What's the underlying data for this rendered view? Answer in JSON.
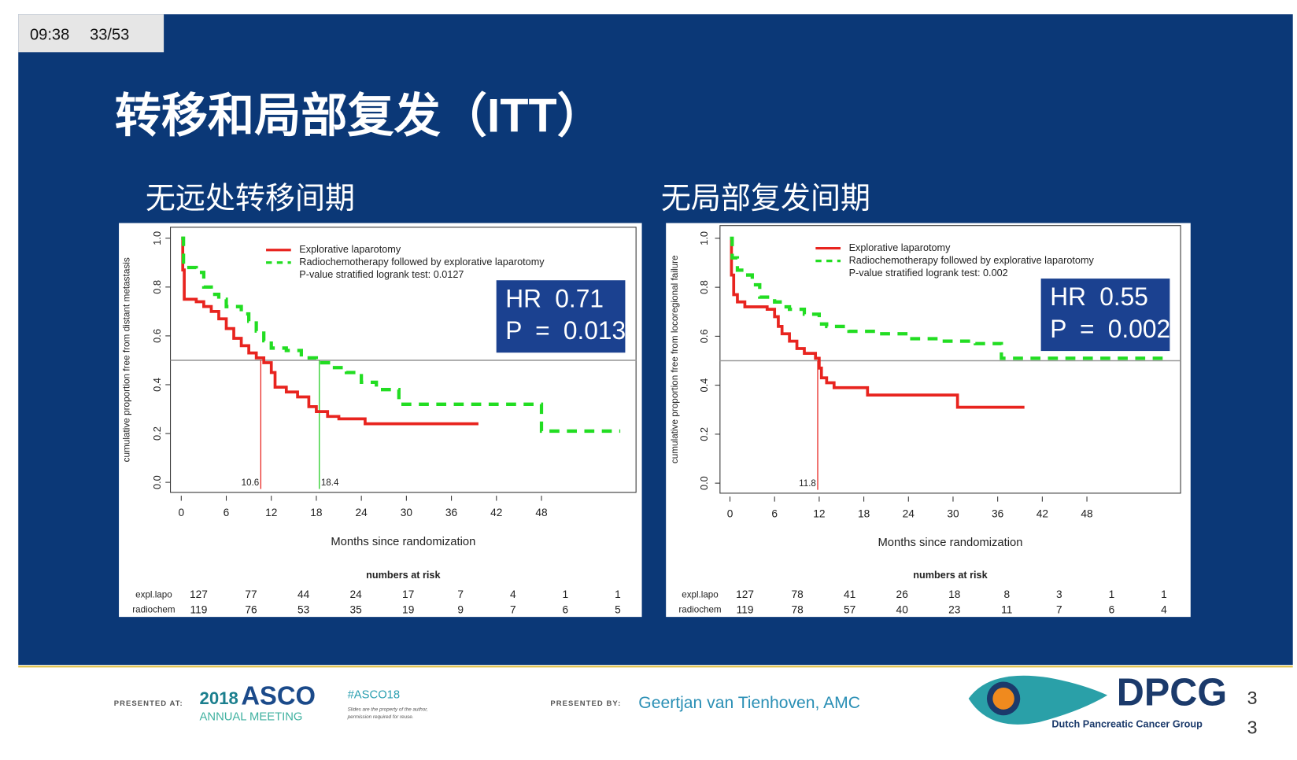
{
  "status_bar": {
    "time": "09:38",
    "slide_counter": "33/53"
  },
  "slide": {
    "title": "转移和局部复发（ITT）",
    "slide_number_digits": [
      "3",
      "3"
    ]
  },
  "chart_data": [
    {
      "type": "line",
      "step": "post",
      "subtitle": "无远处转移间期",
      "xlabel": "Months since randomization",
      "ylabel": "cumulative proportion free from distant metastasis",
      "xlim": [
        -1.44,
        60.6
      ],
      "ylim": [
        -0.041,
        1.045
      ],
      "xticks": [
        0,
        6,
        12,
        18,
        24,
        30,
        36,
        42,
        48
      ],
      "yticks": [
        {
          "value": 0,
          "label": "0.0"
        },
        0.2,
        0.4,
        0.6,
        0.8,
        {
          "value": 1,
          "label": "1.0"
        }
      ],
      "reference_y": 0.5,
      "medians": [
        {
          "x": 10.6,
          "color": "#e8241f"
        },
        {
          "x": 18.4,
          "color": "#22cc22"
        }
      ],
      "series": [
        {
          "name": "Explorative laparotomy",
          "color": "#e8241f",
          "line_style": "solid",
          "x": [
            0,
            0.2,
            0.4,
            2,
            3,
            4,
            5,
            6,
            7,
            8,
            9,
            10,
            11,
            12,
            12.5,
            14,
            15.5,
            17,
            18,
            19.5,
            21,
            24.5,
            39.6
          ],
          "values": [
            1.0,
            0.87,
            0.75,
            0.74,
            0.72,
            0.7,
            0.67,
            0.63,
            0.59,
            0.56,
            0.53,
            0.51,
            0.49,
            0.45,
            0.39,
            0.37,
            0.35,
            0.31,
            0.29,
            0.27,
            0.26,
            0.24,
            0.24
          ]
        },
        {
          "name": "Radiochemotherapy followed by explorative laparotomy",
          "color": "#22dd22",
          "line_style": "dashed",
          "x": [
            0,
            0.3,
            2,
            3,
            4,
            5,
            6,
            8,
            9,
            10,
            11,
            12,
            14,
            16,
            18,
            20,
            22,
            24,
            26,
            29,
            48,
            58.5
          ],
          "values": [
            1.0,
            0.88,
            0.86,
            0.8,
            0.77,
            0.75,
            0.72,
            0.69,
            0.66,
            0.62,
            0.58,
            0.55,
            0.54,
            0.51,
            0.49,
            0.47,
            0.45,
            0.41,
            0.38,
            0.32,
            0.21,
            0.21
          ]
        }
      ],
      "annotation": "P-value stratified logrank test: 0.0127",
      "hr_box": [
        "HR 0.71",
        "P = 0.013"
      ],
      "risk_table": {
        "title": "numbers at risk",
        "rows": [
          {
            "name": "expl.lapo",
            "values": [
              127,
              77,
              44,
              24,
              17,
              7,
              4,
              1,
              1
            ]
          },
          {
            "name": "radiochem",
            "values": [
              119,
              76,
              53,
              35,
              19,
              9,
              7,
              6,
              5
            ]
          }
        ]
      }
    },
    {
      "type": "line",
      "step": "post",
      "subtitle": "无局部复发间期",
      "xlabel": "Months since randomization",
      "ylabel": "cumulative proportion free from locoregional failure",
      "xlim": [
        -1.34,
        60.6
      ],
      "ylim": [
        -0.041,
        1.052
      ],
      "xticks": [
        0,
        6,
        12,
        18,
        24,
        30,
        36,
        42,
        48
      ],
      "yticks": [
        {
          "value": 0,
          "label": "0.0"
        },
        0.2,
        0.4,
        0.6,
        0.8,
        {
          "value": 1,
          "label": "1.0"
        }
      ],
      "reference_y": 0.5,
      "medians": [
        {
          "x": 11.8,
          "color": "#e8241f"
        }
      ],
      "series": [
        {
          "name": "Explorative laparotomy",
          "color": "#e8241f",
          "line_style": "solid",
          "x": [
            0,
            0.2,
            0.5,
            1,
            2,
            5,
            6,
            6.5,
            7,
            8,
            9,
            10,
            11.5,
            12,
            12.3,
            13,
            14,
            18.5,
            30.6,
            39.6
          ],
          "values": [
            1.0,
            0.85,
            0.77,
            0.74,
            0.72,
            0.71,
            0.68,
            0.64,
            0.61,
            0.58,
            0.55,
            0.53,
            0.51,
            0.47,
            0.43,
            0.41,
            0.39,
            0.36,
            0.31,
            0.31
          ]
        },
        {
          "name": "Radiochemotherapy followed by explorative laparotomy",
          "color": "#22dd22",
          "line_style": "dashed",
          "x": [
            0,
            0.3,
            1,
            2,
            3,
            4,
            6,
            7,
            8,
            10,
            12,
            13,
            16,
            20,
            24,
            28,
            33,
            36.5,
            58.5
          ],
          "values": [
            1.0,
            0.92,
            0.87,
            0.85,
            0.81,
            0.76,
            0.74,
            0.72,
            0.71,
            0.69,
            0.65,
            0.64,
            0.62,
            0.61,
            0.59,
            0.58,
            0.57,
            0.51,
            0.51
          ]
        }
      ],
      "annotation": "P-value stratified logrank test: 0.002",
      "hr_box": [
        "HR 0.55",
        "P = 0.002"
      ],
      "risk_table": {
        "title": "numbers at risk",
        "rows": [
          {
            "name": "expl.lapo",
            "values": [
              127,
              78,
              41,
              26,
              18,
              8,
              3,
              1,
              1
            ]
          },
          {
            "name": "radiochem",
            "values": [
              119,
              78,
              57,
              40,
              23,
              11,
              7,
              6,
              4
            ]
          }
        ]
      }
    }
  ],
  "footer": {
    "presented_at": "PRESENTED AT:",
    "asco_year": "2018",
    "asco_name": "ASCO",
    "asco_meeting": "ANNUAL MEETING",
    "hashtag": "#ASCO18",
    "disclaimer": [
      "Slides are the property of the author,",
      "permission required for reuse."
    ],
    "presented_by": "PRESENTED BY:",
    "presenter": "Geertjan van Tienhoven, AMC",
    "logo_title": "DPCG",
    "logo_subtitle": "Dutch Pancreatic Cancer Group"
  }
}
